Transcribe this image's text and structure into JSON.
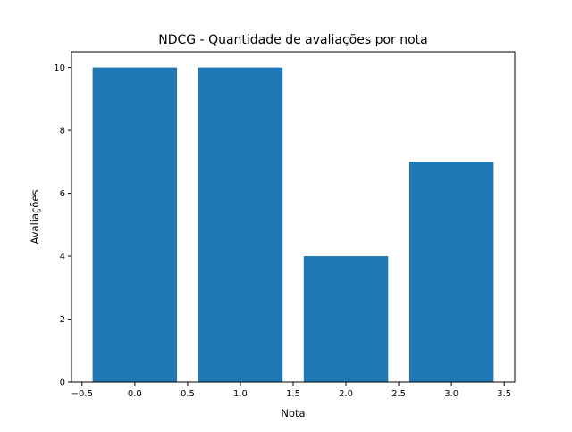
{
  "chart_data": {
    "type": "bar",
    "title": "NDCG - Quantidade de avaliações por nota",
    "xlabel": "Nota",
    "ylabel": "Avaliações",
    "x": [
      0,
      1,
      2,
      3
    ],
    "values": [
      10,
      10,
      4,
      7
    ],
    "bar_width": 0.8,
    "xlim": [
      -0.6,
      3.6
    ],
    "ylim": [
      0,
      10.5
    ],
    "xticks": [
      "−0.5",
      "0.0",
      "0.5",
      "1.0",
      "1.5",
      "2.0",
      "2.5",
      "3.0",
      "3.5"
    ],
    "xtick_values": [
      -0.5,
      0,
      0.5,
      1,
      1.5,
      2,
      2.5,
      3,
      3.5
    ],
    "yticks": [
      "0",
      "2",
      "4",
      "6",
      "8",
      "10"
    ],
    "ytick_values": [
      0,
      2,
      4,
      6,
      8,
      10
    ],
    "grid": false,
    "legend": "none",
    "bar_color": "#1f77b4"
  }
}
